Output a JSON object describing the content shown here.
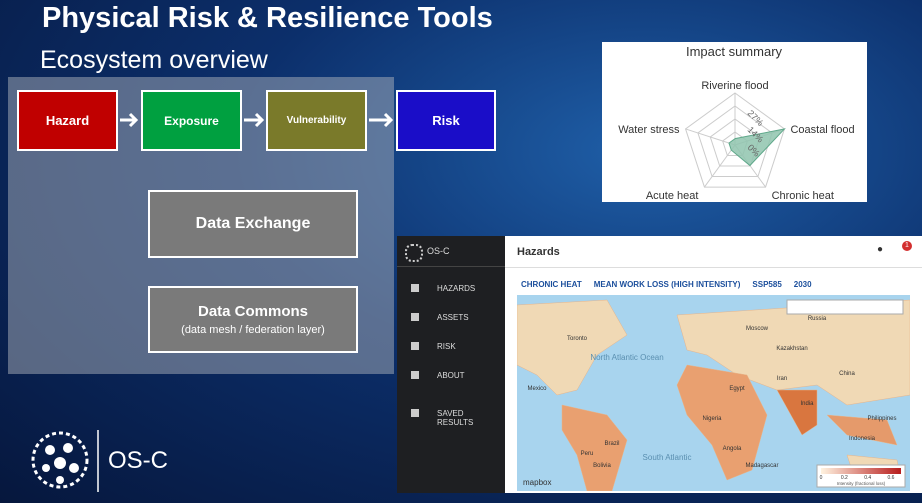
{
  "slide": {
    "title": "Physical Risk & Resilience Tools",
    "subtitle": "Ecosystem overview",
    "flow": [
      "Hazard",
      "Exposure",
      "Vulnerability",
      "Risk"
    ],
    "data_exchange": "Data Exchange",
    "data_commons": {
      "title": "Data Commons",
      "subtitle": "(data mesh / federation layer)"
    },
    "logo": "OS-C"
  },
  "impact_summary": {
    "type": "radar",
    "title": "Impact summary",
    "axes": [
      "Riverine flood",
      "Coastal flood",
      "Chronic heat",
      "Acute heat",
      "Water stress"
    ],
    "values": [
      5,
      41,
      20,
      5,
      5
    ],
    "color": "#8fc4ae",
    "rlim": [
      0,
      41
    ],
    "rticks": [
      {
        "value": 0,
        "label": "0%"
      },
      {
        "value": 14,
        "label": "14%"
      },
      {
        "value": 27,
        "label": "27%"
      }
    ]
  },
  "app": {
    "brand": "OS-C",
    "header": "Hazards",
    "badge": "1",
    "nav": [
      "HAZARDS",
      "ASSETS",
      "RISK",
      "ABOUT",
      "SAVED RESULTS"
    ],
    "filters": [
      "CHRONIC HEAT",
      "MEAN WORK LOSS (HIGH INTENSITY)",
      "SSP585",
      "2030"
    ],
    "map_labels": [
      "North Atlantic Ocean",
      "South Atlantic",
      "Russia",
      "Moscow",
      "Kazakhstan",
      "China",
      "India",
      "Iran",
      "Egypt",
      "Nigeria",
      "Brazil",
      "Peru",
      "Bolivia",
      "Mexico",
      "Angola",
      "Madagascar",
      "Indonesia",
      "Philippines",
      "Toronto"
    ],
    "legend": {
      "title": "Intensity (fractional loss)",
      "ticks": [
        0,
        0.2,
        0.4,
        0.6
      ]
    },
    "attribution": "mapbox"
  }
}
